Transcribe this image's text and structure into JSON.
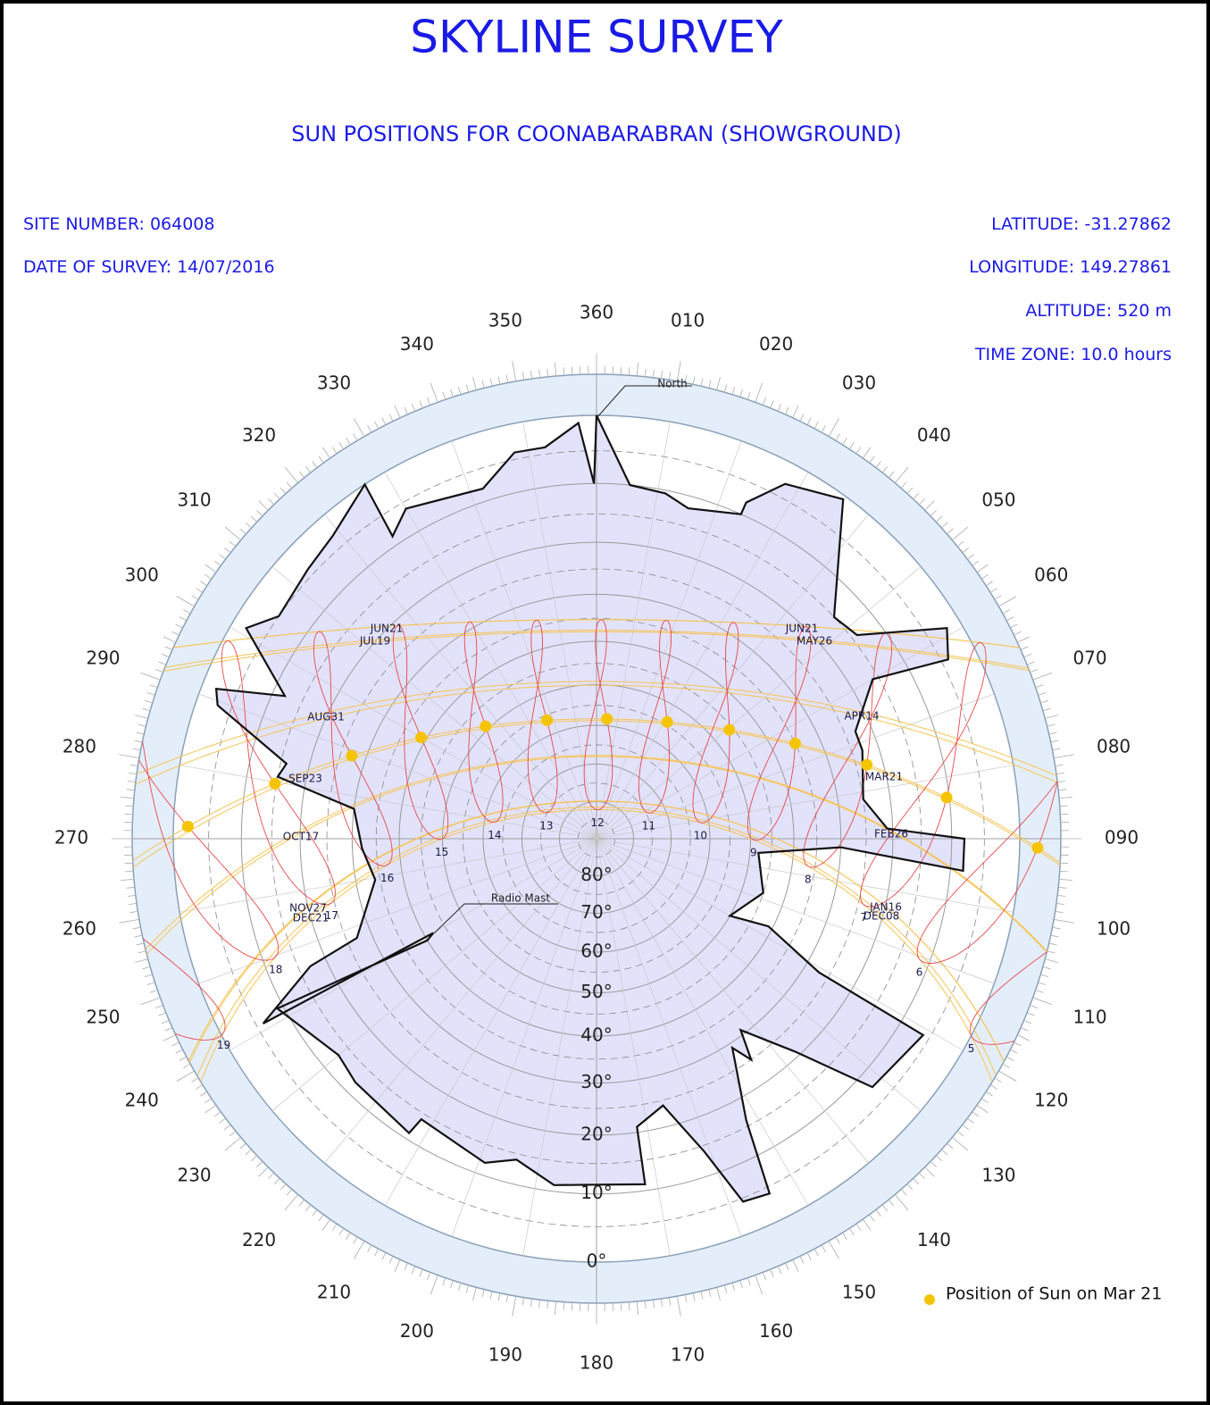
{
  "chart_data": {
    "type": "sun_path_polar",
    "title": "SKYLINE SURVEY",
    "subtitle": "SUN POSITIONS FOR COONABARABRAN (SHOWGROUND)",
    "site": {
      "site_number_label": "SITE NUMBER:",
      "site_number": "064008",
      "date_label": "DATE OF SURVEY:",
      "date": "14/07/2016",
      "latitude_label": "LATITUDE:",
      "latitude": -31.27862,
      "longitude_label": "LONGITUDE:",
      "longitude": 149.27861,
      "altitude_label": "ALTITUDE:",
      "altitude": "520 m",
      "time_zone_label": "TIME ZONE:",
      "time_zone": {
        "value": 10,
        "label": "10.0 hours"
      }
    },
    "azimuth_ticks": [
      360,
      {
        "value": 10,
        "label": "010"
      },
      {
        "value": 20,
        "label": "020"
      },
      {
        "value": 30,
        "label": "030"
      },
      {
        "value": 40,
        "label": "040"
      },
      {
        "value": 50,
        "label": "050"
      },
      {
        "value": 60,
        "label": "060"
      },
      {
        "value": 70,
        "label": "070"
      },
      {
        "value": 80,
        "label": "080"
      },
      {
        "value": 90,
        "label": "090"
      },
      100,
      110,
      120,
      130,
      140,
      150,
      160,
      170,
      180,
      190,
      200,
      210,
      220,
      230,
      240,
      250,
      260,
      270,
      280,
      290,
      300,
      310,
      320,
      330,
      340,
      350
    ],
    "altitude_ticks": [
      {
        "value": 0,
        "label": "0°"
      },
      {
        "value": 10,
        "label": "10°"
      },
      {
        "value": 20,
        "label": "20°"
      },
      {
        "value": 30,
        "label": "30°"
      },
      {
        "value": 40,
        "label": "40°"
      },
      {
        "value": 50,
        "label": "50°"
      },
      {
        "value": 60,
        "label": "60°"
      },
      {
        "value": 70,
        "label": "70°"
      },
      {
        "value": 80,
        "label": "80°"
      }
    ],
    "skyline": {
      "azimuth": [
        0,
        5.4,
        11.3,
        15.5,
        24,
        24,
        28,
        36,
        47,
        52,
        59,
        63,
        60,
        67.5,
        71.6,
        81.6,
        88,
        90,
        95,
        92,
        95,
        108,
        120,
        117,
        121,
        121,
        132,
        137,
        143,
        145,
        147,
        152,
        154,
        158,
        161,
        166,
        172,
        172,
        187,
        194,
        199,
        212,
        212.5,
        224.7,
        230,
        242,
        239,
        240,
        241,
        246,
        247.5,
        259.5,
        267.6,
        277,
        281,
        283.6,
        289.4,
        291.5,
        294.6,
        301,
        305,
        313,
        319,
        326.8,
        326,
        330,
        342,
        348,
        352.5,
        357.5,
        359.6
      ],
      "altitude": [
        0,
        10,
        10.5,
        12,
        10,
        8,
        3,
        0.5,
        15,
        14,
        2,
        4,
        16,
        23,
        23,
        25,
        21,
        8,
        8,
        30,
        48,
        45,
        50,
        41,
        27,
        6,
        7.5,
        21,
        31,
        25,
        29,
        16,
        4,
        4.5,
        14,
        24,
        21,
        11,
        11,
        14,
        12,
        14,
        11,
        12,
        13,
        9,
        40,
        42,
        6,
        17,
        27,
        34,
        32,
        30,
        15,
        16,
        3,
        2,
        12,
        2,
        5,
        4,
        3,
        0,
        8.5,
        6,
        8,
        4,
        4,
        1,
        10
      ]
    },
    "hours": [
      5,
      6,
      7,
      8,
      9,
      10,
      11,
      12,
      13,
      14,
      15,
      16,
      17,
      18,
      19
    ],
    "left_dates": [
      "JUN21",
      "JUL19",
      "AUG31",
      "SEP23",
      "OCT17",
      "NOV27",
      "DEC21"
    ],
    "right_dates": [
      "JUN21",
      "MAY26",
      "APR14",
      "MAR21",
      "FEB26",
      "JAN16",
      "DEC08"
    ],
    "annotations": [
      "North",
      "Radio Mast"
    ],
    "legend": "Position of Sun on Mar 21",
    "skyline_color": "#e2e2fb",
    "analemma_color": "#e8484a",
    "date_line_color": "#f6c453",
    "marker_color": "#f5c400"
  }
}
